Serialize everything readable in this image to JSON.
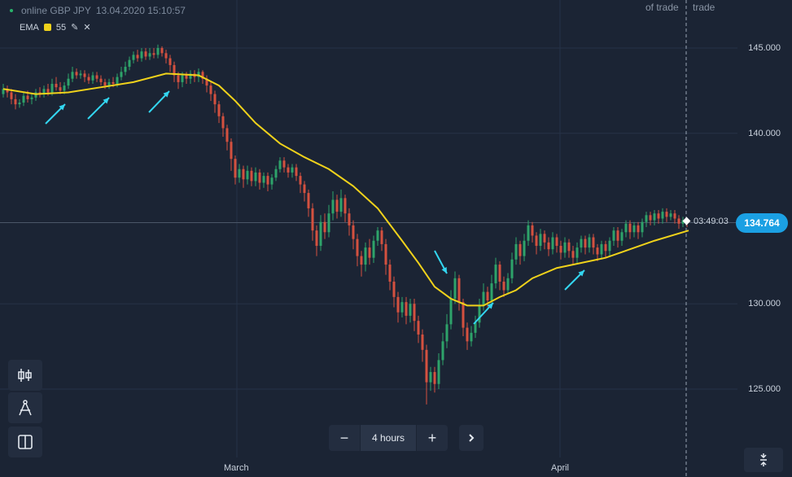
{
  "header": {
    "asset": "online GBP JPY",
    "datetime": "13.04.2020 15:10:57"
  },
  "indicator": {
    "name": "EMA",
    "period": "55",
    "color": "#f0d21b"
  },
  "trade_labels": {
    "left": "of trade",
    "right": "trade"
  },
  "price": {
    "current": "134.764",
    "countdown": "03:49:03"
  },
  "timeframe": {
    "minus": "−",
    "label": "4 hours",
    "plus": "+"
  },
  "toolbar": {
    "items": [
      "candles-icon",
      "drawing-compass-icon",
      "split-layout-icon"
    ]
  },
  "chart_data": {
    "type": "candlestick",
    "y_ticks": [
      "145.000",
      "140.000",
      "130.000",
      "125.000"
    ],
    "x_ticks": [
      "March",
      "April"
    ],
    "ylim": [
      122,
      148
    ],
    "series": [
      {
        "name": "EMA 55",
        "type": "line",
        "color": "#f0d21b",
        "points": [
          [
            0,
            142.6
          ],
          [
            40,
            142.3
          ],
          [
            80,
            142.4
          ],
          [
            120,
            142.7
          ],
          [
            160,
            143.0
          ],
          [
            200,
            143.5
          ],
          [
            240,
            143.4
          ],
          [
            265,
            142.8
          ],
          [
            285,
            141.9
          ],
          [
            310,
            140.6
          ],
          [
            340,
            139.4
          ],
          [
            370,
            138.6
          ],
          [
            400,
            137.9
          ],
          [
            430,
            136.9
          ],
          [
            460,
            135.6
          ],
          [
            490,
            133.7
          ],
          [
            510,
            132.4
          ],
          [
            530,
            131.0
          ],
          [
            550,
            130.3
          ],
          [
            570,
            129.9
          ],
          [
            590,
            129.9
          ],
          [
            610,
            130.4
          ],
          [
            630,
            130.8
          ],
          [
            650,
            131.5
          ],
          [
            680,
            132.1
          ],
          [
            710,
            132.4
          ],
          [
            740,
            132.7
          ],
          [
            770,
            133.2
          ],
          [
            800,
            133.7
          ],
          [
            842,
            134.3
          ]
        ]
      }
    ],
    "candles": [
      [
        0,
        142.3,
        142.6,
        142.9,
        142.1
      ],
      [
        5,
        142.6,
        142.4,
        142.8,
        142.1
      ],
      [
        10,
        142.4,
        142.0,
        142.6,
        141.7
      ],
      [
        15,
        142.0,
        141.7,
        142.3,
        141.4
      ],
      [
        20,
        141.7,
        141.8,
        142.0,
        141.5
      ],
      [
        25,
        141.8,
        142.2,
        142.4,
        141.6
      ],
      [
        30,
        142.2,
        142.0,
        142.5,
        141.8
      ],
      [
        35,
        142.0,
        142.1,
        142.3,
        141.7
      ],
      [
        40,
        142.1,
        142.4,
        142.6,
        141.9
      ],
      [
        45,
        142.4,
        142.3,
        142.7,
        142.1
      ],
      [
        50,
        142.3,
        142.6,
        142.8,
        142.1
      ],
      [
        55,
        142.6,
        142.4,
        142.9,
        142.2
      ],
      [
        60,
        142.4,
        142.9,
        143.2,
        142.2
      ],
      [
        65,
        142.9,
        142.7,
        143.3,
        142.5
      ],
      [
        70,
        142.7,
        142.5,
        143.0,
        142.3
      ],
      [
        75,
        142.5,
        142.8,
        143.0,
        142.3
      ],
      [
        80,
        142.8,
        143.2,
        143.5,
        142.6
      ],
      [
        85,
        143.2,
        143.6,
        143.9,
        143.0
      ],
      [
        90,
        143.6,
        143.4,
        143.8,
        143.2
      ],
      [
        95,
        143.4,
        143.5,
        143.7,
        143.2
      ],
      [
        100,
        143.5,
        143.3,
        143.7,
        143.0
      ],
      [
        105,
        143.3,
        143.1,
        143.5,
        142.9
      ],
      [
        110,
        143.1,
        143.4,
        143.6,
        142.9
      ],
      [
        115,
        143.4,
        143.2,
        143.6,
        143.0
      ],
      [
        120,
        143.2,
        143.0,
        143.4,
        142.8
      ],
      [
        125,
        143.0,
        142.8,
        143.2,
        142.6
      ],
      [
        130,
        142.8,
        143.0,
        143.2,
        142.6
      ],
      [
        135,
        143.0,
        142.9,
        143.3,
        142.7
      ],
      [
        140,
        142.9,
        143.3,
        143.5,
        142.7
      ],
      [
        145,
        143.3,
        143.6,
        143.9,
        143.1
      ],
      [
        150,
        143.6,
        143.9,
        144.2,
        143.4
      ],
      [
        155,
        143.9,
        144.3,
        144.5,
        143.7
      ],
      [
        160,
        144.3,
        144.6,
        144.8,
        144.1
      ],
      [
        165,
        144.6,
        144.4,
        144.9,
        144.2
      ],
      [
        170,
        144.4,
        144.8,
        145.0,
        144.2
      ],
      [
        175,
        144.8,
        144.5,
        145.0,
        144.3
      ],
      [
        180,
        144.5,
        144.7,
        145.0,
        144.3
      ],
      [
        185,
        144.7,
        144.6,
        145.0,
        144.4
      ],
      [
        190,
        144.6,
        145.0,
        145.2,
        144.4
      ],
      [
        195,
        145.0,
        144.7,
        145.1,
        144.5
      ],
      [
        200,
        144.7,
        144.4,
        144.9,
        144.1
      ],
      [
        205,
        144.4,
        144.0,
        144.6,
        143.6
      ],
      [
        210,
        144.0,
        143.4,
        144.2,
        143.0
      ],
      [
        215,
        143.4,
        143.0,
        143.6,
        142.6
      ],
      [
        220,
        143.0,
        143.4,
        143.6,
        142.7
      ],
      [
        225,
        143.4,
        143.2,
        143.6,
        142.9
      ],
      [
        230,
        143.2,
        143.5,
        143.7,
        142.9
      ],
      [
        235,
        143.5,
        143.3,
        143.7,
        143.0
      ],
      [
        240,
        143.3,
        143.6,
        143.8,
        143.0
      ],
      [
        245,
        143.6,
        143.2,
        143.7,
        142.9
      ],
      [
        250,
        143.2,
        142.8,
        143.4,
        142.4
      ],
      [
        255,
        142.8,
        142.3,
        143.0,
        141.9
      ],
      [
        260,
        142.3,
        141.7,
        142.5,
        141.2
      ],
      [
        265,
        141.7,
        141.0,
        141.9,
        140.6
      ],
      [
        270,
        141.0,
        140.3,
        141.2,
        139.8
      ],
      [
        275,
        140.3,
        139.5,
        140.5,
        139.0
      ],
      [
        280,
        139.5,
        138.5,
        139.7,
        137.8
      ],
      [
        285,
        138.5,
        137.4,
        138.7,
        137.0
      ],
      [
        290,
        137.4,
        137.9,
        138.2,
        137.1
      ],
      [
        295,
        137.9,
        137.3,
        138.1,
        136.8
      ],
      [
        300,
        137.3,
        137.8,
        138.1,
        137.0
      ],
      [
        305,
        137.8,
        137.2,
        138.0,
        136.9
      ],
      [
        310,
        137.2,
        137.7,
        138.0,
        136.9
      ],
      [
        315,
        137.7,
        137.1,
        137.9,
        136.7
      ],
      [
        320,
        137.1,
        137.5,
        137.7,
        136.8
      ],
      [
        325,
        137.5,
        137.0,
        137.7,
        136.6
      ],
      [
        330,
        137.0,
        137.4,
        137.6,
        136.7
      ],
      [
        335,
        137.4,
        137.9,
        138.1,
        137.2
      ],
      [
        340,
        137.9,
        138.4,
        138.6,
        137.7
      ],
      [
        345,
        138.4,
        138.0,
        138.6,
        137.7
      ],
      [
        350,
        138.0,
        137.7,
        138.2,
        137.4
      ],
      [
        355,
        137.7,
        138.0,
        138.2,
        137.4
      ],
      [
        360,
        138.0,
        137.5,
        138.2,
        137.2
      ],
      [
        365,
        137.5,
        137.0,
        137.7,
        136.5
      ],
      [
        370,
        137.0,
        136.5,
        137.2,
        136.0
      ],
      [
        375,
        136.5,
        135.6,
        136.7,
        135.1
      ],
      [
        380,
        135.6,
        134.3,
        135.9,
        133.7
      ],
      [
        385,
        134.3,
        133.4,
        134.6,
        132.8
      ],
      [
        390,
        133.4,
        134.8,
        135.2,
        133.1
      ],
      [
        395,
        134.8,
        134.2,
        135.3,
        133.8
      ],
      [
        400,
        134.2,
        135.3,
        135.8,
        133.9
      ],
      [
        405,
        135.3,
        136.1,
        136.6,
        134.9
      ],
      [
        410,
        136.1,
        135.4,
        136.4,
        135.0
      ],
      [
        415,
        135.4,
        136.2,
        136.7,
        135.1
      ],
      [
        420,
        136.2,
        135.3,
        136.4,
        134.8
      ],
      [
        425,
        135.3,
        134.6,
        135.6,
        134.0
      ],
      [
        430,
        134.6,
        133.8,
        134.9,
        133.2
      ],
      [
        435,
        133.8,
        132.8,
        134.1,
        132.2
      ],
      [
        440,
        132.8,
        132.3,
        133.1,
        131.6
      ],
      [
        445,
        132.3,
        133.3,
        133.6,
        131.9
      ],
      [
        450,
        133.3,
        132.7,
        133.8,
        132.3
      ],
      [
        455,
        132.7,
        133.7,
        134.0,
        132.4
      ],
      [
        460,
        133.7,
        134.3,
        134.5,
        133.4
      ],
      [
        465,
        134.3,
        133.5,
        134.5,
        133.1
      ],
      [
        470,
        133.5,
        132.3,
        133.8,
        131.7
      ],
      [
        475,
        132.3,
        131.3,
        132.6,
        130.8
      ],
      [
        480,
        131.3,
        130.4,
        131.6,
        129.8
      ],
      [
        485,
        130.4,
        129.5,
        130.7,
        128.9
      ],
      [
        490,
        129.5,
        130.1,
        130.4,
        129.2
      ],
      [
        495,
        130.1,
        129.3,
        130.4,
        128.8
      ],
      [
        500,
        129.3,
        130.0,
        130.3,
        128.9
      ],
      [
        505,
        130.0,
        129.0,
        130.3,
        128.4
      ],
      [
        510,
        129.0,
        128.2,
        129.3,
        127.7
      ],
      [
        515,
        128.2,
        127.3,
        128.5,
        126.6
      ],
      [
        520,
        127.3,
        125.4,
        127.6,
        124.1
      ],
      [
        525,
        125.4,
        126.0,
        126.3,
        124.9
      ],
      [
        530,
        126.0,
        125.3,
        126.3,
        124.8
      ],
      [
        535,
        125.3,
        126.7,
        127.1,
        125.0
      ],
      [
        540,
        126.7,
        127.8,
        128.3,
        126.4
      ],
      [
        545,
        127.8,
        128.8,
        129.4,
        127.4
      ],
      [
        550,
        128.8,
        130.3,
        130.8,
        128.5
      ],
      [
        555,
        130.3,
        131.5,
        131.9,
        130.0
      ],
      [
        560,
        131.5,
        130.1,
        131.7,
        129.6
      ],
      [
        565,
        130.1,
        128.6,
        130.3,
        128.1
      ],
      [
        570,
        128.6,
        127.8,
        128.9,
        127.3
      ],
      [
        575,
        127.8,
        128.3,
        128.7,
        127.5
      ],
      [
        580,
        128.3,
        128.9,
        129.3,
        128.0
      ],
      [
        585,
        128.9,
        129.9,
        130.3,
        128.6
      ],
      [
        590,
        129.9,
        130.7,
        131.2,
        129.6
      ],
      [
        595,
        130.7,
        130.2,
        131.0,
        129.8
      ],
      [
        600,
        130.2,
        131.2,
        131.7,
        129.9
      ],
      [
        605,
        131.2,
        132.3,
        132.7,
        130.9
      ],
      [
        610,
        132.3,
        131.3,
        132.5,
        130.8
      ],
      [
        615,
        131.3,
        130.8,
        131.6,
        130.4
      ],
      [
        620,
        130.8,
        131.5,
        131.8,
        130.6
      ],
      [
        625,
        131.5,
        132.6,
        133.0,
        131.2
      ],
      [
        630,
        132.6,
        133.5,
        133.9,
        132.3
      ],
      [
        635,
        133.5,
        132.8,
        133.7,
        132.3
      ],
      [
        640,
        132.8,
        133.7,
        134.1,
        132.5
      ],
      [
        645,
        133.7,
        134.6,
        134.9,
        133.4
      ],
      [
        650,
        134.6,
        134.0,
        134.8,
        133.6
      ],
      [
        655,
        134.0,
        133.4,
        134.2,
        132.9
      ],
      [
        660,
        133.4,
        134.1,
        134.4,
        133.1
      ],
      [
        665,
        134.1,
        133.6,
        134.3,
        133.2
      ],
      [
        670,
        133.6,
        133.2,
        133.9,
        132.8
      ],
      [
        675,
        133.2,
        133.9,
        134.2,
        132.9
      ],
      [
        680,
        133.9,
        133.4,
        134.1,
        133.0
      ],
      [
        685,
        133.4,
        133.0,
        133.7,
        132.6
      ],
      [
        690,
        133.0,
        133.6,
        133.9,
        132.7
      ],
      [
        695,
        133.6,
        133.1,
        133.8,
        132.7
      ],
      [
        700,
        133.1,
        132.7,
        133.4,
        132.3
      ],
      [
        705,
        132.7,
        133.3,
        133.6,
        132.4
      ],
      [
        710,
        133.3,
        133.8,
        134.0,
        133.0
      ],
      [
        715,
        133.8,
        133.3,
        134.0,
        132.9
      ],
      [
        720,
        133.3,
        133.9,
        134.1,
        133.0
      ],
      [
        725,
        133.9,
        133.3,
        134.1,
        132.9
      ],
      [
        730,
        133.3,
        132.9,
        133.5,
        132.5
      ],
      [
        735,
        132.9,
        133.5,
        133.7,
        132.6
      ],
      [
        740,
        133.5,
        133.1,
        133.7,
        132.7
      ],
      [
        745,
        133.1,
        133.7,
        133.9,
        132.8
      ],
      [
        750,
        133.7,
        134.3,
        134.5,
        133.4
      ],
      [
        755,
        134.3,
        133.7,
        134.5,
        133.3
      ],
      [
        760,
        133.7,
        134.2,
        134.4,
        133.4
      ],
      [
        765,
        134.2,
        134.7,
        134.9,
        133.9
      ],
      [
        770,
        134.7,
        134.2,
        134.9,
        133.8
      ],
      [
        775,
        134.2,
        134.6,
        134.8,
        133.9
      ],
      [
        780,
        134.6,
        134.2,
        134.8,
        133.8
      ],
      [
        785,
        134.2,
        134.8,
        135.0,
        133.9
      ],
      [
        790,
        134.8,
        135.2,
        135.4,
        134.5
      ],
      [
        795,
        135.2,
        134.9,
        135.4,
        134.6
      ],
      [
        800,
        134.9,
        135.3,
        135.5,
        134.6
      ],
      [
        805,
        135.3,
        135.0,
        135.5,
        134.7
      ],
      [
        810,
        135.0,
        135.4,
        135.6,
        134.7
      ],
      [
        815,
        135.4,
        135.1,
        135.6,
        134.8
      ],
      [
        820,
        135.1,
        135.3,
        135.5,
        134.9
      ],
      [
        825,
        135.3,
        135.0,
        135.5,
        134.7
      ],
      [
        830,
        135.0,
        134.7,
        135.2,
        134.4
      ],
      [
        835,
        134.7,
        134.9,
        135.1,
        134.5
      ],
      [
        840,
        134.9,
        134.764,
        135.0,
        134.5
      ]
    ]
  }
}
